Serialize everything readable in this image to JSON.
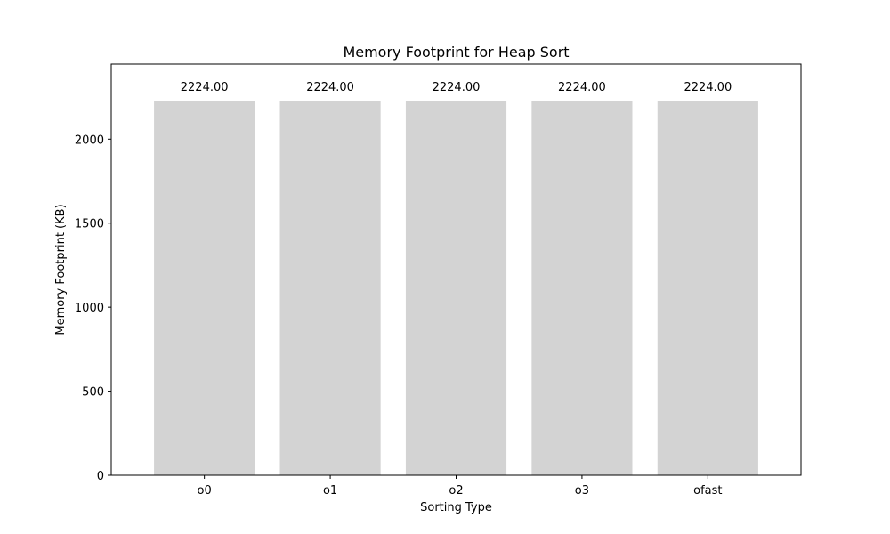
{
  "chart_data": {
    "type": "bar",
    "title": "Memory Footprint for Heap Sort",
    "xlabel": "Sorting Type",
    "ylabel": "Memory Footprint (KB)",
    "categories": [
      "o0",
      "o1",
      "o2",
      "o3",
      "ofast"
    ],
    "values": [
      2224.0,
      2224.0,
      2224.0,
      2224.0,
      2224.0
    ],
    "data_labels": [
      "2224.00",
      "2224.00",
      "2224.00",
      "2224.00",
      "2224.00"
    ],
    "ylim": [
      0,
      2446.4
    ],
    "yticks": [
      0,
      500,
      1000,
      1500,
      2000
    ],
    "ytick_labels": [
      "0",
      "500",
      "1000",
      "1500",
      "2000"
    ],
    "grid": false,
    "legend": "none",
    "bar_color": "#d3d3d3"
  }
}
